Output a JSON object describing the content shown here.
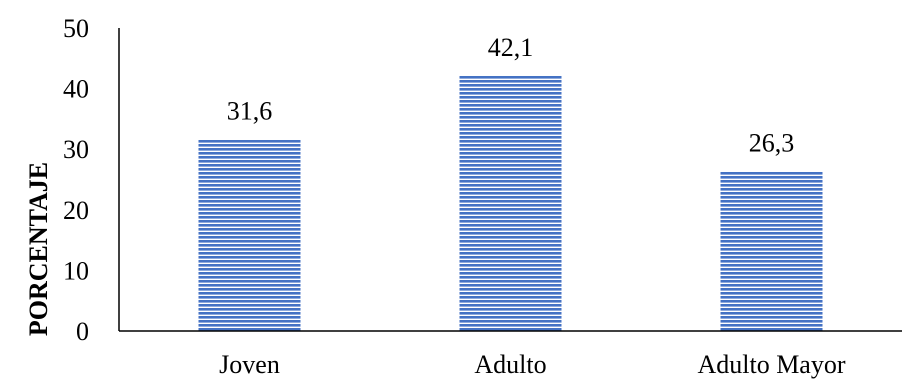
{
  "chart_data": {
    "type": "bar",
    "categories": [
      "Joven",
      "Adulto",
      "Adulto Mayor"
    ],
    "values": [
      31.6,
      42.1,
      26.3
    ],
    "value_labels": [
      "31,6",
      "42,1",
      "26,3"
    ],
    "title": "",
    "xlabel": "",
    "ylabel": "PORCENTAJE",
    "ylim": [
      0,
      50
    ],
    "yticks": [
      0,
      10,
      20,
      30,
      40,
      50
    ],
    "grid": false,
    "legend": "none",
    "bar_color": "#4472C4",
    "bar_stripe_color": "#ffffff",
    "bar_pattern": "horizontal-stripes"
  }
}
